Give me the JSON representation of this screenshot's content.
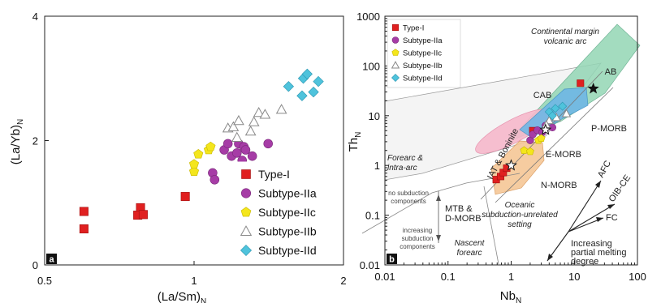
{
  "chart_data": [
    {
      "type": "scatter",
      "panel_label": "a",
      "xlabel": "(La/Sm)",
      "xlabel_sub": "N",
      "ylabel": "(La/Yb)",
      "ylabel_sub": "N",
      "x_scale": "log",
      "xlim": [
        0.5,
        2
      ],
      "ylim": [
        0,
        4
      ],
      "x_ticks": [
        "0.5",
        "1",
        "2"
      ],
      "x_tick_values": [
        0.5,
        1,
        2
      ],
      "y_ticks": [
        "0",
        "2",
        "4"
      ],
      "y_tick_values": [
        0,
        2,
        4
      ],
      "legend_position": "bottom-right",
      "series": [
        {
          "name": "Type-I",
          "marker": "square",
          "color": "#e02020",
          "points": [
            [
              0.6,
              0.86
            ],
            [
              0.6,
              0.58
            ],
            [
              0.78,
              0.92
            ],
            [
              0.77,
              0.8
            ],
            [
              0.79,
              0.81
            ],
            [
              0.96,
              1.1
            ]
          ]
        },
        {
          "name": "Subtype-IIa",
          "marker": "circle",
          "color": "#a63ca6",
          "points": [
            [
              1.09,
              1.48
            ],
            [
              1.1,
              1.37
            ],
            [
              1.15,
              1.85
            ],
            [
              1.17,
              1.95
            ],
            [
              1.19,
              1.75
            ],
            [
              1.22,
              1.8
            ],
            [
              1.23,
              1.95
            ],
            [
              1.26,
              1.9
            ],
            [
              1.28,
              1.58
            ],
            [
              1.31,
              1.75
            ],
            [
              1.41,
              1.95
            ],
            [
              1.27,
              1.85
            ],
            [
              1.25,
              1.68
            ]
          ]
        },
        {
          "name": "Subtype-IIc",
          "marker": "pentagon",
          "color": "#f4e61c",
          "points": [
            [
              1.0,
              1.5
            ],
            [
              1.0,
              1.62
            ],
            [
              1.02,
              1.78
            ],
            [
              1.07,
              1.85
            ],
            [
              1.08,
              1.9
            ]
          ]
        },
        {
          "name": "Subtype-IIb",
          "marker": "triangle",
          "color": "#ffffff",
          "points": [
            [
              1.17,
              2.2
            ],
            [
              1.2,
              2.22
            ],
            [
              1.23,
              2.32
            ],
            [
              1.22,
              2.05
            ],
            [
              1.3,
              2.15
            ],
            [
              1.32,
              2.3
            ],
            [
              1.35,
              2.45
            ],
            [
              1.39,
              2.42
            ],
            [
              1.5,
              2.5
            ]
          ]
        },
        {
          "name": "Subtype-IId",
          "marker": "diamond",
          "color": "#4fc3dc",
          "points": [
            [
              1.55,
              2.87
            ],
            [
              1.66,
              3.0
            ],
            [
              1.69,
              3.07
            ],
            [
              1.74,
              2.78
            ],
            [
              1.78,
              2.95
            ],
            [
              1.65,
              2.72
            ]
          ]
        }
      ]
    },
    {
      "type": "scatter",
      "panel_label": "b",
      "xlabel": "Nb",
      "xlabel_sub": "N",
      "ylabel": "Th",
      "ylabel_sub": "N",
      "x_scale": "log",
      "y_scale": "log",
      "xlim": [
        0.01,
        100
      ],
      "ylim": [
        0.01,
        1000
      ],
      "x_ticks": [
        "0.01",
        "0.1",
        "1",
        "10",
        "100"
      ],
      "x_tick_values": [
        0.01,
        0.1,
        1,
        10,
        100
      ],
      "y_ticks": [
        "0.01",
        "0.1",
        "1",
        "10",
        "100",
        "1000"
      ],
      "y_tick_values": [
        0.01,
        0.1,
        1,
        10,
        100,
        1000
      ],
      "legend_position": "top-left",
      "series": [
        {
          "name": "Type-I",
          "marker": "square",
          "color": "#e02020",
          "points": [
            [
              0.58,
              0.52
            ],
            [
              0.68,
              0.6
            ],
            [
              0.75,
              0.72
            ],
            [
              0.85,
              0.88
            ],
            [
              2.2,
              5.0
            ],
            [
              12.5,
              45
            ]
          ]
        },
        {
          "name": "Subtype-IIa",
          "marker": "circle",
          "color": "#a63ca6",
          "points": [
            [
              2.0,
              3.2
            ],
            [
              2.2,
              4.2
            ],
            [
              2.6,
              5.1
            ],
            [
              3.5,
              6.3
            ],
            [
              4.5,
              5.8
            ],
            [
              3.1,
              4.6
            ]
          ]
        },
        {
          "name": "Subtype-IIc",
          "marker": "pentagon",
          "color": "#f4e61c",
          "points": [
            [
              1.6,
              2.0
            ],
            [
              2.0,
              1.9
            ],
            [
              2.7,
              3.2
            ],
            [
              3.0,
              3.5
            ]
          ]
        },
        {
          "name": "Subtype-IIb",
          "marker": "triangle",
          "color": "#ffffff",
          "points": [
            [
              4.0,
              8.0
            ],
            [
              5.2,
              9.2
            ],
            [
              3.6,
              6.6
            ],
            [
              7.5,
              11.0
            ]
          ]
        },
        {
          "name": "Subtype-IId",
          "marker": "diamond",
          "color": "#4fc3dc",
          "points": [
            [
              4.0,
              12.0
            ],
            [
              5.0,
              14.0
            ],
            [
              6.5,
              15.5
            ],
            [
              4.5,
              10.0
            ]
          ]
        }
      ],
      "region_labels": [
        {
          "text": "Continental margin",
          "style": "italic"
        },
        {
          "text": "volcanic arc",
          "style": "italic"
        },
        {
          "text": "AB"
        },
        {
          "text": "CAB"
        },
        {
          "text": "P-MORB"
        },
        {
          "text": "E-MORB"
        },
        {
          "text": "N-MORB"
        },
        {
          "text": "IAT & Boninite"
        },
        {
          "text": "Forearc &",
          "style": "italic"
        },
        {
          "text": "intra-arc",
          "style": "italic"
        },
        {
          "text": "Oceanic",
          "style": "italic"
        },
        {
          "text": "subduction-unrelated",
          "style": "italic"
        },
        {
          "text": "setting",
          "style": "italic"
        },
        {
          "text": "MTB &"
        },
        {
          "text": "D-MORB"
        },
        {
          "text": "Nascent",
          "style": "italic"
        },
        {
          "text": "forearc",
          "style": "italic"
        },
        {
          "text": "no subduction"
        },
        {
          "text": "components"
        },
        {
          "text": "increasing"
        },
        {
          "text": "subduction"
        },
        {
          "text": "components"
        },
        {
          "text": "AFC"
        },
        {
          "text": "OIB-CE"
        },
        {
          "text": "FC"
        },
        {
          "text": "Increasing"
        },
        {
          "text": "partial melting"
        },
        {
          "text": "degree"
        }
      ]
    }
  ]
}
